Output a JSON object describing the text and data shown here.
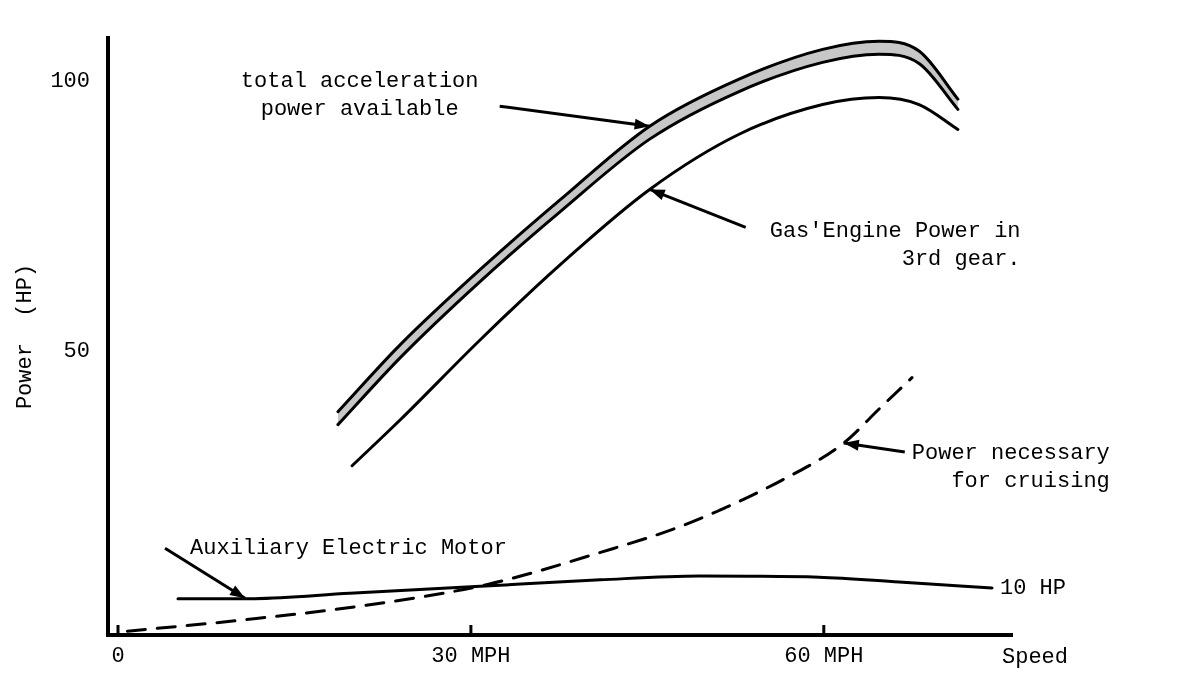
{
  "chart_data": {
    "type": "line",
    "ylabel": "Power  (HP)",
    "xlabel": "Speed",
    "xlim": [
      -0.85,
      76
    ],
    "ylim": [
      -2.4,
      108
    ],
    "xticks": [
      0,
      {
        "value": 30,
        "label": "30 MPH"
      },
      {
        "value": 60,
        "label": "60 MPH"
      }
    ],
    "yticks": [
      50,
      100
    ],
    "grid": false,
    "legend": false,
    "marker": "none",
    "series": [
      {
        "color": "#000000",
        "line_style": "solid",
        "x": [
          18.7,
          24,
          30.8,
          37.6,
          45.2,
          52.8,
          59.9,
          64.7,
          68.1,
          71.4
        ],
        "values": [
          38.9,
          51.3,
          65.2,
          78.1,
          91.7,
          100.4,
          105.9,
          107.4,
          105.6,
          96.7
        ],
        "lower": [
          36.5,
          48.9,
          63,
          75.9,
          89.3,
          98.1,
          103.5,
          105,
          103.3,
          94.8
        ],
        "upper": [
          38.9,
          51.3,
          65.2,
          78.1,
          91.7,
          100.4,
          105.9,
          107.4,
          105.6,
          96.7
        ]
      },
      {
        "color": "#000000",
        "line_style": "solid",
        "x": [
          18.7,
          24,
          30.8,
          37.6,
          45.2,
          52.8,
          59.9,
          64.7,
          68.1,
          71.4
        ],
        "values": [
          36.5,
          48.9,
          63,
          75.9,
          89.3,
          98.1,
          103.5,
          105,
          103.3,
          94.8
        ]
      },
      {
        "color": "#000000",
        "line_style": "solid",
        "x": [
          19.9,
          24,
          30.8,
          37.6,
          45.2,
          52.8,
          59.9,
          64.7,
          68.1,
          71.4
        ],
        "values": [
          28.9,
          37.4,
          52.2,
          66.1,
          80,
          90.2,
          95.7,
          97,
          95.7,
          91.1
        ]
      },
      {
        "color": "#000000",
        "line_style": "dashed",
        "x": [
          0.8,
          10.7,
          21.1,
          31.5,
          40.9,
          48.2,
          56.5,
          61.7,
          64.7,
          67.5
        ],
        "values": [
          -1.7,
          0.4,
          3.1,
          7,
          12.8,
          18,
          26.3,
          33.1,
          39.4,
          45.2
        ]
      },
      {
        "color": "#000000",
        "line_style": "solid",
        "x": [
          5.1,
          11.2,
          19.7,
          30.8,
          41,
          49.4,
          59.6,
          66.4,
          74.3
        ],
        "values": [
          4.3,
          4.3,
          5.3,
          6.6,
          7.8,
          8.5,
          8.3,
          7.4,
          6.3
        ]
      }
    ],
    "annotations": [
      {
        "text": "total acceleration\npower available",
        "x": 45.2,
        "y": 91.7
      },
      {
        "text": "Gas'Engine Power in\n3rd gear.",
        "x": 45.2,
        "y": 80
      },
      {
        "text": "Power necessary\nfor cruising",
        "x": 61.7,
        "y": 33.1
      },
      {
        "text": "Auxiliary Electric Motor",
        "x": 10.8,
        "y": 4.4
      },
      {
        "text": "10 HP",
        "x": 74.3,
        "y": 6.3
      }
    ]
  }
}
